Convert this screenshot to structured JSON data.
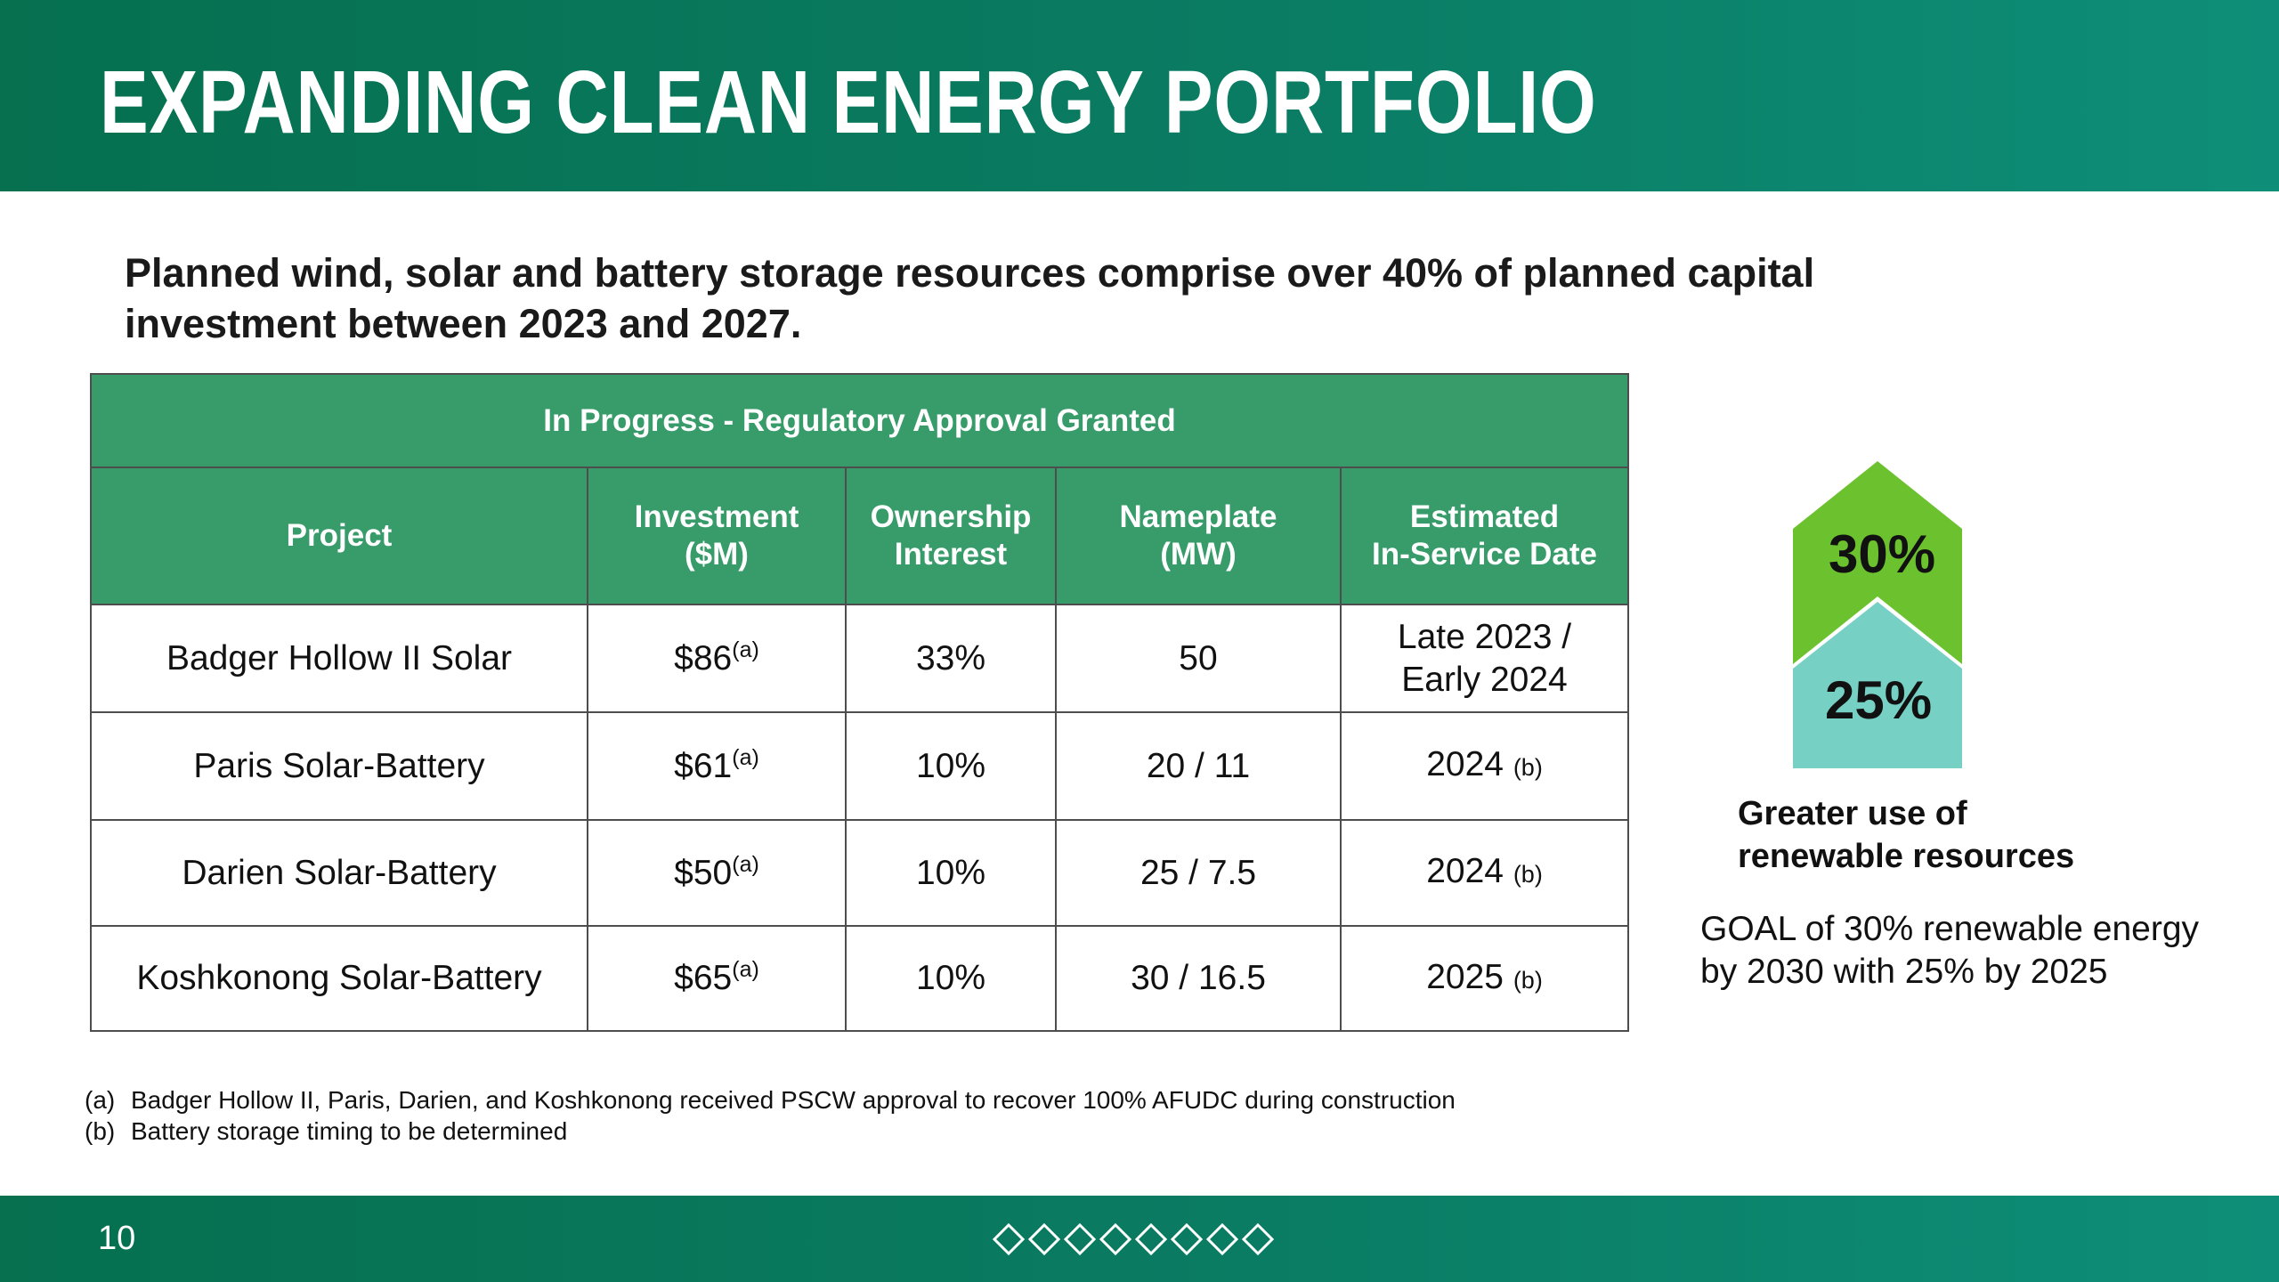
{
  "title": "EXPANDING CLEAN ENERGY PORTFOLIO",
  "subtitle": "Planned wind, solar and battery storage resources comprise over 40% of planned capital investment between 2023 and 2027.",
  "table": {
    "banner": "In Progress - Regulatory Approval Granted",
    "headers": {
      "project": "Project",
      "investment": [
        "Investment",
        "($M)"
      ],
      "ownership": [
        "Ownership",
        "Interest"
      ],
      "nameplate": [
        "Nameplate",
        "(MW)"
      ],
      "date": [
        "Estimated",
        "In-Service Date"
      ]
    },
    "rows": [
      {
        "project": "Badger Hollow II Solar",
        "investment": "$86",
        "investment_note": "(a)",
        "ownership": "33%",
        "nameplate": "50",
        "date": [
          "Late 2023 /",
          "Early 2024"
        ],
        "date_note": ""
      },
      {
        "project": "Paris Solar-Battery",
        "investment": "$61",
        "investment_note": "(a)",
        "ownership": "10%",
        "nameplate": "20 / 11",
        "date": [
          "2024"
        ],
        "date_note": "(b)"
      },
      {
        "project": "Darien Solar-Battery",
        "investment": "$50",
        "investment_note": "(a)",
        "ownership": "10%",
        "nameplate": "25 / 7.5",
        "date": [
          "2024"
        ],
        "date_note": "(b)"
      },
      {
        "project": "Koshkonong Solar-Battery",
        "investment": "$65",
        "investment_note": "(a)",
        "ownership": "10%",
        "nameplate": "30 / 16.5",
        "date": [
          "2025"
        ],
        "date_note": "(b)"
      }
    ]
  },
  "goal": {
    "upper_pct": "30%",
    "lower_pct": "25%",
    "caption_line1": "Greater use of",
    "caption_line2": "renewable resources",
    "text_line1": "GOAL of 30% renewable energy",
    "text_line2": "by 2030 with 25% by 2025",
    "colors": {
      "upper": "#6cc12e",
      "lower": "#77d0c4"
    }
  },
  "footnotes": [
    {
      "label": "(a)",
      "text": "Badger Hollow II, Paris, Darien, and Koshkonong received PSCW approval to recover 100% AFUDC during construction"
    },
    {
      "label": "(b)",
      "text": "Battery storage timing to be determined"
    }
  ],
  "footer": {
    "page_number": "10",
    "diamond_count": 8
  },
  "colors": {
    "brand_green": "#06704f",
    "table_header": "#379b6a"
  }
}
